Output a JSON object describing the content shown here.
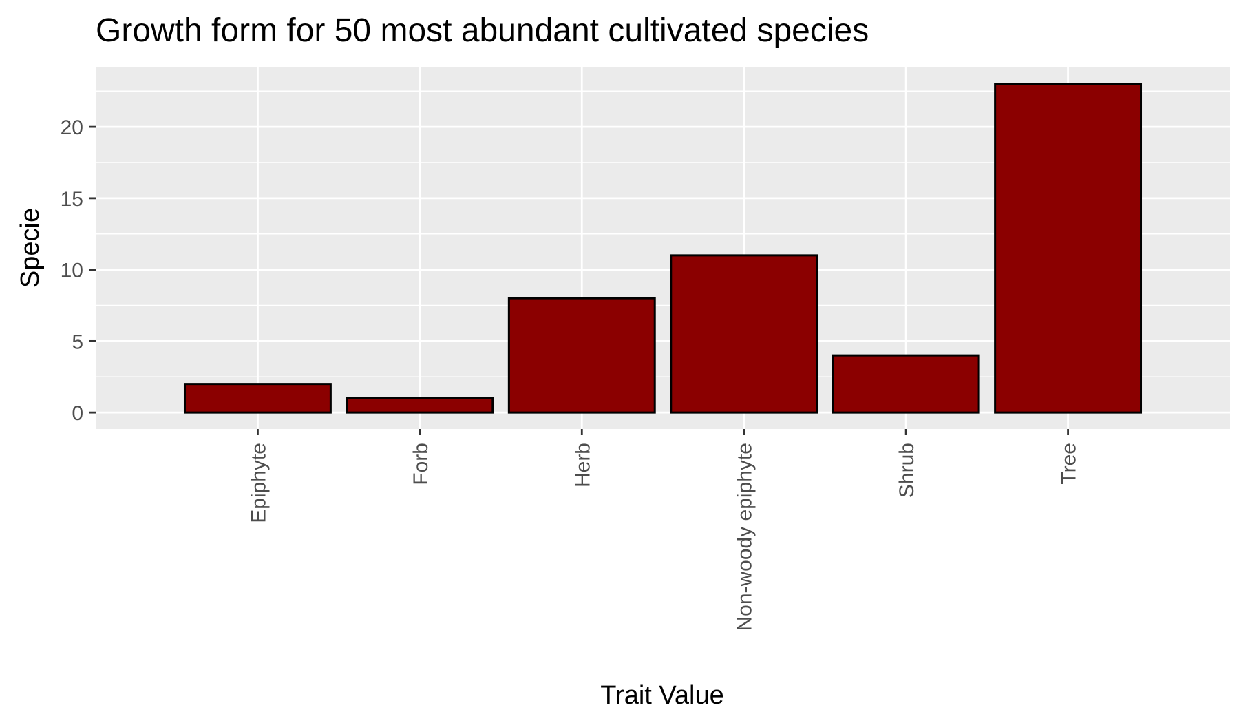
{
  "chart_data": {
    "type": "bar",
    "title": "Growth form for 50 most abundant cultivated species",
    "xlabel": "Trait Value",
    "ylabel": "Specie",
    "categories": [
      "Epiphyte",
      "Forb",
      "Herb",
      "Non-woody epiphyte",
      "Shrub",
      "Tree"
    ],
    "values": [
      2,
      1,
      8,
      11,
      4,
      23
    ],
    "ylim": [
      -1.15,
      24.15
    ],
    "yticks": [
      0,
      5,
      10,
      15,
      20
    ],
    "ytick_labels": [
      "0",
      "5",
      "10",
      "15",
      "20"
    ],
    "grid": true,
    "legend": "none",
    "colors": {
      "bar_fill": "#8b0000",
      "bar_stroke": "#000000",
      "panel_background": "#ebebeb",
      "grid": "#ffffff",
      "tick_text": "#4d4d4d",
      "tick_mark": "#333333"
    }
  }
}
